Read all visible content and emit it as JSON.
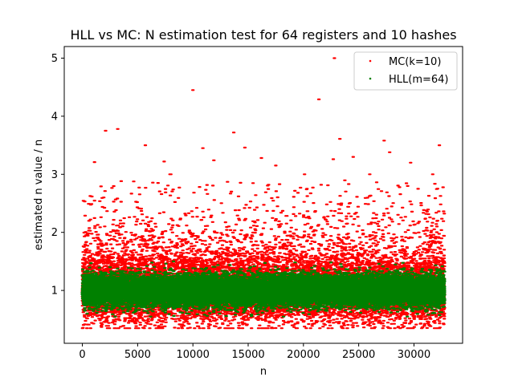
{
  "chart_data": {
    "type": "scatter",
    "title": "HLL vs MC: N estimation test for 64 registers and 10 hashes",
    "xlabel": "n",
    "ylabel": "estimated n value / n",
    "xlim": [
      -1640,
      34400
    ],
    "ylim": [
      0.09,
      5.2
    ],
    "xticks": [
      0,
      5000,
      10000,
      15000,
      20000,
      25000,
      30000
    ],
    "xtick_labels": [
      "0",
      "5000",
      "10000",
      "15000",
      "20000",
      "25000",
      "30000"
    ],
    "yticks": [
      1,
      2,
      3,
      4,
      5
    ],
    "ytick_labels": [
      "1",
      "2",
      "3",
      "4",
      "5"
    ],
    "grid": false,
    "legend_position": "top-right",
    "n_range": [
      1,
      32768
    ],
    "series": [
      {
        "name": "MC(k=10)",
        "color": "#ff0000",
        "marker": "point",
        "typical_range": [
          0.45,
          1.8
        ],
        "min": 0.35,
        "outliers": [
          [
            10000,
            4.45
          ],
          [
            21400,
            4.29
          ],
          [
            22800,
            5.0
          ],
          [
            2100,
            3.75
          ],
          [
            3200,
            3.78
          ],
          [
            13700,
            3.72
          ],
          [
            5700,
            3.5
          ],
          [
            23300,
            3.61
          ],
          [
            27300,
            3.58
          ],
          [
            32300,
            3.5
          ],
          [
            10900,
            3.45
          ],
          [
            14700,
            3.46
          ],
          [
            27800,
            3.38
          ],
          [
            17500,
            3.15
          ],
          [
            16200,
            3.28
          ],
          [
            7400,
            3.22
          ],
          [
            11900,
            3.24
          ],
          [
            20100,
            3.0
          ],
          [
            22700,
            3.26
          ],
          [
            1100,
            3.21
          ],
          [
            24500,
            3.3
          ],
          [
            29700,
            3.2
          ],
          [
            31700,
            3.0
          ],
          [
            26000,
            3.0
          ],
          [
            8000,
            3.0
          ]
        ]
      },
      {
        "name": "HLL(m=64)",
        "color": "#008000",
        "marker": "point",
        "typical_range": [
          0.6,
          1.45
        ],
        "min": 0.55
      }
    ]
  }
}
